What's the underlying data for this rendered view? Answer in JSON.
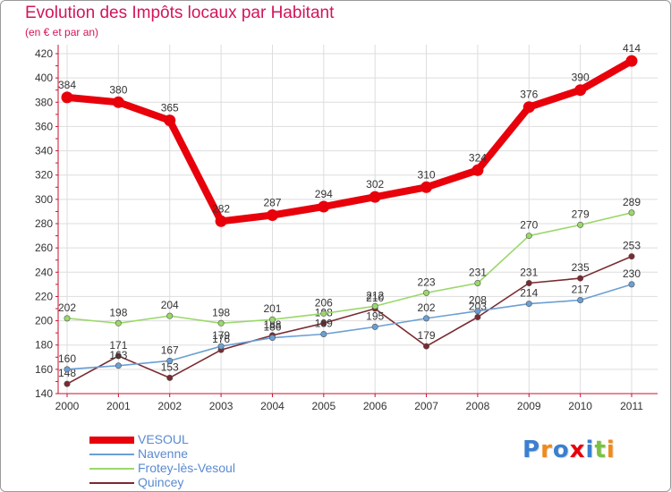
{
  "title": "Evolution des Impôts locaux par Habitant",
  "subtitle": "(en € et par an)",
  "colors": {
    "title": "#d4145a",
    "axis": "#c8102e",
    "grid": "#dddddd",
    "legend_text": "#5a8ad0"
  },
  "chart_data": {
    "type": "line",
    "title": "Evolution des Impôts locaux par Habitant",
    "subtitle": "(en € et par an)",
    "categories": [
      "2000",
      "2001",
      "2002",
      "2003",
      "2004",
      "2005",
      "2006",
      "2007",
      "2008",
      "2009",
      "2010",
      "2011"
    ],
    "ylim": [
      140,
      420
    ],
    "yticks": [
      140,
      160,
      180,
      200,
      220,
      240,
      260,
      280,
      300,
      320,
      340,
      360,
      380,
      400,
      420
    ],
    "grid": true,
    "legend_position": "bottom-left",
    "series": [
      {
        "name": "Quincey",
        "color": "#7a2a32",
        "values": [
          148,
          171,
          153,
          176,
          188,
          198,
          210,
          179,
          203,
          231,
          235,
          253
        ]
      },
      {
        "name": "Navenne",
        "color": "#6b9fd4",
        "values": [
          160,
          163,
          167,
          179,
          186,
          189,
          195,
          202,
          208,
          214,
          217,
          230
        ]
      },
      {
        "name": "Frotey-lès-Vesoul",
        "color": "#9ad86a",
        "values": [
          202,
          198,
          204,
          198,
          201,
          206,
          212,
          223,
          231,
          270,
          279,
          289
        ]
      },
      {
        "name": "VESOUL",
        "color": "#e8000b",
        "values": [
          384,
          380,
          365,
          282,
          287,
          294,
          302,
          310,
          324,
          376,
          390,
          414
        ]
      }
    ]
  },
  "legend": [
    {
      "name": "VESOUL",
      "color": "#e8000b"
    },
    {
      "name": "Navenne",
      "color": "#6b9fd4"
    },
    {
      "name": "Frotey-lès-Vesoul",
      "color": "#9ad86a"
    },
    {
      "name": "Quincey",
      "color": "#7a2a32"
    }
  ],
  "logo": {
    "letters": [
      "P",
      "r",
      "o",
      "x",
      "i",
      "t",
      "i"
    ],
    "colors": [
      "#3a7fd0",
      "#f08a1a",
      "#3a7fd0",
      "#e8000b",
      "#3a7fd0",
      "#7ac142",
      "#f08a1a"
    ]
  }
}
